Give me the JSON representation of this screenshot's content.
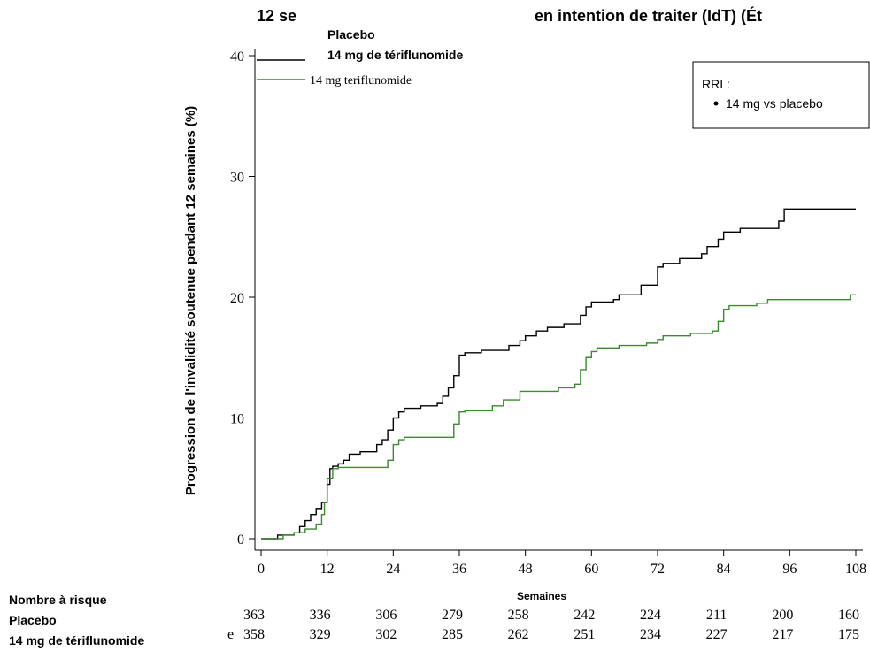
{
  "chart_data": {
    "type": "step",
    "title_parts": [
      "12 se",
      "en intention de traiter (IdT) (Ét"
    ],
    "overlay_labels": [
      "Placebo",
      "14 mg de tériflunomide"
    ],
    "annotation": {
      "title": "RRI :",
      "bullet": "14 mg vs placebo"
    },
    "ylabel": "Progression de l'invalidité soutenue pendant 12 semaines (%)",
    "xlabel": "Semaines",
    "xlim": [
      0,
      108
    ],
    "xticks": [
      0,
      12,
      24,
      36,
      48,
      60,
      72,
      84,
      96,
      108
    ],
    "ylim": [
      0,
      40
    ],
    "yticks": [
      0,
      10,
      20,
      30,
      40
    ],
    "series": [
      {
        "color": "#000000",
        "x": [
          0,
          3,
          6,
          7,
          8,
          9,
          10,
          11,
          12,
          12.5,
          13,
          14,
          15,
          16,
          18,
          21,
          22,
          23,
          24,
          25,
          26,
          29,
          32,
          33,
          34,
          35,
          36,
          37,
          40,
          45,
          47,
          48,
          50,
          52,
          55,
          58,
          59,
          60,
          64,
          65,
          69,
          72,
          73,
          76,
          80,
          81,
          83,
          84,
          87,
          94,
          95,
          108
        ],
        "values": [
          0,
          0.3,
          0.5,
          1,
          1.5,
          2,
          2.5,
          3,
          4.5,
          5.8,
          6,
          6.2,
          6.5,
          7,
          7.2,
          7.8,
          8.2,
          9,
          10,
          10.5,
          10.8,
          11,
          11.2,
          11.8,
          12.5,
          13.5,
          15.2,
          15.4,
          15.6,
          16,
          16.4,
          16.8,
          17.2,
          17.5,
          17.8,
          18.5,
          19.2,
          19.6,
          19.8,
          20.2,
          21,
          22.5,
          22.8,
          23.2,
          23.6,
          24.2,
          24.8,
          25.4,
          25.7,
          26.3,
          27.3,
          27.3
        ]
      },
      {
        "name": "14 mg teriflunomide",
        "color": "#3a8a2e",
        "x": [
          0,
          4,
          6,
          8,
          10,
          11,
          11.5,
          12,
          13,
          14,
          23,
          24,
          25,
          26,
          34,
          35,
          36,
          37,
          42,
          44,
          47,
          54,
          57,
          58,
          59,
          60,
          61,
          65,
          70,
          72,
          73,
          78,
          82,
          83,
          84,
          85,
          90,
          92,
          107,
          108
        ],
        "values": [
          0,
          0.3,
          0.5,
          0.8,
          1.2,
          2,
          3,
          5,
          5.8,
          5.9,
          6.5,
          7.8,
          8.2,
          8.4,
          8.4,
          9.5,
          10.5,
          10.6,
          11,
          11.5,
          12.2,
          12.5,
          12.8,
          14,
          15,
          15.5,
          15.8,
          16,
          16.2,
          16.5,
          16.8,
          17,
          17.2,
          18,
          19,
          19.3,
          19.5,
          19.8,
          20.2,
          20.2
        ]
      }
    ],
    "risk_table": {
      "title": "Nombre à risque",
      "groups": [
        "Placebo",
        "14 mg de tériflunomide"
      ],
      "prefix": "e",
      "rows": [
        [
          363,
          336,
          306,
          279,
          258,
          242,
          224,
          211,
          200,
          160
        ],
        [
          358,
          329,
          302,
          285,
          262,
          251,
          234,
          227,
          217,
          175
        ]
      ]
    }
  }
}
